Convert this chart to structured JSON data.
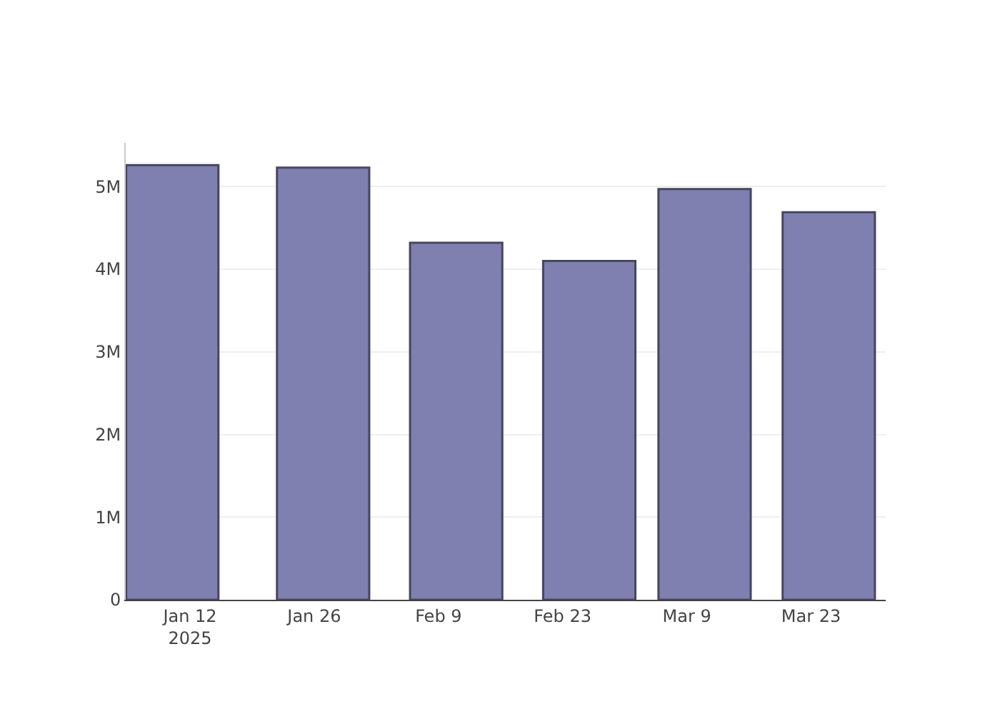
{
  "chart_data": {
    "type": "bar",
    "x": [
      "2025-01-10",
      "2025-01-27",
      "2025-02-11",
      "2025-02-26",
      "2025-03-11",
      "2025-03-25"
    ],
    "values": [
      5260000,
      5230000,
      4320000,
      4100000,
      4970000,
      4690000
    ],
    "color": "#7f7fb0",
    "xlim": [
      "2025-01-04T18:00",
      "2025-03-31T10:00"
    ],
    "xticks": [
      {
        "value": "2025-01-12",
        "label": "Jan 12\n2025"
      },
      {
        "value": "2025-01-26",
        "label": "Jan 26"
      },
      {
        "value": "2025-02-09",
        "label": "Feb 9"
      },
      {
        "value": "2025-02-23",
        "label": "Feb 23"
      },
      {
        "value": "2025-03-09",
        "label": "Mar 9"
      },
      {
        "value": "2025-03-23",
        "label": "Mar 23"
      }
    ],
    "yticks": [
      0,
      {
        "value": 1000000,
        "label": "1M"
      },
      {
        "value": 2000000,
        "label": "2M"
      },
      {
        "value": 3000000,
        "label": "3M"
      },
      {
        "value": 4000000,
        "label": "4M"
      },
      {
        "value": 5000000,
        "label": "5M"
      }
    ],
    "ylim": [
      0,
      5530000
    ],
    "grid": "y"
  }
}
